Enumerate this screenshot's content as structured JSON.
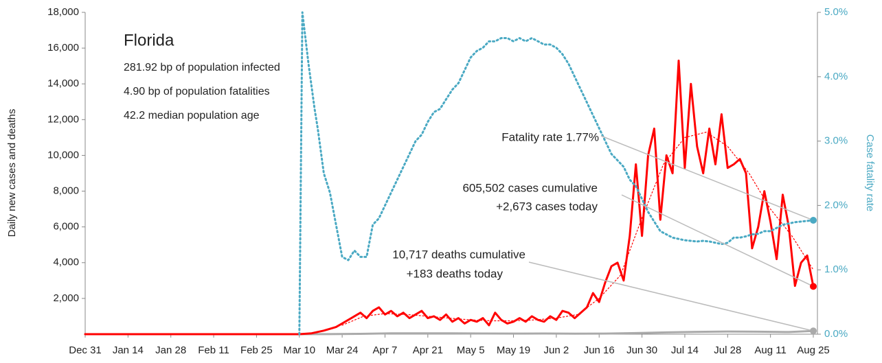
{
  "chart_data": {
    "type": "line",
    "title": "Florida",
    "info": [
      "281.92 bp of population infected",
      "4.90 bp of population fatalities",
      "42.2 median population age"
    ],
    "y_label": "Daily new cases and deaths",
    "y2_label": "Case fatality rate",
    "annotations": {
      "fatality": "Fatality rate 1.77%",
      "cases": [
        "605,502 cases cumulative",
        "+2,673 cases today"
      ],
      "deaths": [
        "10,717 deaths cumulative",
        "+183 deaths today"
      ]
    },
    "xlim": [
      0,
      238
    ],
    "xticks": [
      {
        "value": 0,
        "label": "Dec 31"
      },
      {
        "value": 14,
        "label": "Jan 14"
      },
      {
        "value": 28,
        "label": "Jan 28"
      },
      {
        "value": 42,
        "label": "Feb 11"
      },
      {
        "value": 56,
        "label": "Feb 25"
      },
      {
        "value": 70,
        "label": "Mar 10"
      },
      {
        "value": 84,
        "label": "Mar 24"
      },
      {
        "value": 98,
        "label": "Apr 7"
      },
      {
        "value": 112,
        "label": "Apr 21"
      },
      {
        "value": 126,
        "label": "May 5"
      },
      {
        "value": 140,
        "label": "May 19"
      },
      {
        "value": 154,
        "label": "Jun 2"
      },
      {
        "value": 168,
        "label": "Jun 16"
      },
      {
        "value": 182,
        "label": "Jun 30"
      },
      {
        "value": 196,
        "label": "Jul 14"
      },
      {
        "value": 210,
        "label": "Jul 28"
      },
      {
        "value": 224,
        "label": "Aug 11"
      },
      {
        "value": 238,
        "label": "Aug 25"
      }
    ],
    "ylim": [
      0,
      18000
    ],
    "yticks": [
      {
        "value": 2000,
        "label": "2,000"
      },
      {
        "value": 4000,
        "label": "4,000"
      },
      {
        "value": 6000,
        "label": "6,000"
      },
      {
        "value": 8000,
        "label": "8,000"
      },
      {
        "value": 10000,
        "label": "10,000"
      },
      {
        "value": 12000,
        "label": "12,000"
      },
      {
        "value": 14000,
        "label": "14,000"
      },
      {
        "value": 16000,
        "label": "16,000"
      },
      {
        "value": 18000,
        "label": "18,000"
      }
    ],
    "y2lim": [
      0,
      5
    ],
    "y2ticks": [
      {
        "value": 0,
        "label": "0.0%"
      },
      {
        "value": 1,
        "label": "1.0%"
      },
      {
        "value": 2,
        "label": "2.0%"
      },
      {
        "value": 3,
        "label": "3.0%"
      },
      {
        "value": 4,
        "label": "4.0%"
      },
      {
        "value": 5,
        "label": "5.0%"
      }
    ],
    "series": [
      {
        "color": "#aaaaaa",
        "style": "solid",
        "width": 3,
        "end_marker": true,
        "x": [
          0,
          70,
          80,
          90,
          100,
          110,
          120,
          130,
          140,
          150,
          160,
          170,
          180,
          190,
          200,
          210,
          220,
          230,
          238
        ],
        "values": [
          0,
          0,
          5,
          20,
          45,
          50,
          45,
          40,
          35,
          40,
          30,
          35,
          60,
          100,
          130,
          150,
          140,
          120,
          183
        ]
      },
      {
        "color": "#ff0000",
        "style": "solid",
        "width": 3,
        "end_marker": true,
        "x": [
          0,
          70,
          74,
          78,
          82,
          84,
          86,
          88,
          90,
          92,
          94,
          96,
          98,
          100,
          102,
          104,
          106,
          108,
          110,
          112,
          114,
          116,
          118,
          120,
          122,
          124,
          126,
          128,
          130,
          132,
          134,
          136,
          138,
          140,
          142,
          144,
          146,
          148,
          150,
          152,
          154,
          156,
          158,
          160,
          162,
          164,
          166,
          168,
          170,
          172,
          174,
          176,
          178,
          180,
          182,
          184,
          186,
          188,
          190,
          192,
          194,
          196,
          198,
          200,
          202,
          204,
          206,
          208,
          210,
          212,
          214,
          216,
          218,
          220,
          222,
          224,
          226,
          228,
          230,
          232,
          234,
          236,
          238
        ],
        "values": [
          0,
          0,
          50,
          200,
          400,
          600,
          800,
          1000,
          1200,
          900,
          1300,
          1500,
          1100,
          1300,
          1000,
          1200,
          900,
          1100,
          1300,
          900,
          1000,
          800,
          1100,
          700,
          900,
          600,
          800,
          700,
          900,
          500,
          1200,
          800,
          600,
          700,
          900,
          700,
          1000,
          800,
          700,
          1000,
          800,
          1300,
          1200,
          900,
          1200,
          1500,
          2300,
          1800,
          2900,
          3800,
          4000,
          3000,
          5500,
          9500,
          5500,
          10000,
          11500,
          6400,
          10000,
          9000,
          15300,
          9300,
          14000,
          10500,
          9000,
          11500,
          9500,
          12300,
          9300,
          9500,
          9800,
          9000,
          4800,
          6000,
          8000,
          6300,
          4200,
          7800,
          6000,
          2700,
          4000,
          4400,
          2673
        ]
      },
      {
        "color": "#ff0000",
        "style": "dotted",
        "width": 1.2,
        "end_marker": false,
        "x": [
          84,
          91,
          98,
          105,
          112,
          119,
          126,
          133,
          140,
          147,
          154,
          161,
          168,
          175,
          182,
          189,
          196,
          203,
          210,
          217,
          224,
          231,
          238
        ],
        "values": [
          500,
          1000,
          1150,
          1100,
          1000,
          900,
          800,
          750,
          750,
          800,
          900,
          1100,
          2000,
          3300,
          6500,
          9500,
          11000,
          11300,
          10500,
          9000,
          7000,
          5500,
          3600
        ]
      },
      {
        "color": "#4aa9c3",
        "style": "dotted",
        "width": 3,
        "end_marker": true,
        "axis": "y2",
        "x": [
          70,
          71,
          73,
          75,
          76,
          78,
          80,
          82,
          84,
          86,
          88,
          90,
          92,
          94,
          96,
          98,
          100,
          102,
          104,
          106,
          108,
          110,
          112,
          114,
          116,
          118,
          120,
          122,
          124,
          126,
          128,
          130,
          132,
          134,
          136,
          138,
          140,
          142,
          144,
          146,
          148,
          150,
          152,
          154,
          156,
          158,
          160,
          162,
          164,
          166,
          168,
          170,
          172,
          174,
          176,
          178,
          180,
          182,
          184,
          186,
          188,
          190,
          192,
          194,
          196,
          198,
          200,
          202,
          204,
          206,
          208,
          210,
          212,
          214,
          216,
          218,
          220,
          222,
          224,
          226,
          228,
          230,
          232,
          234,
          236,
          238
        ],
        "values": [
          0,
          5.0,
          4.2,
          3.5,
          3.2,
          2.5,
          2.2,
          1.7,
          1.2,
          1.15,
          1.3,
          1.2,
          1.2,
          1.7,
          1.8,
          2.0,
          2.2,
          2.4,
          2.6,
          2.8,
          3.0,
          3.1,
          3.3,
          3.45,
          3.5,
          3.65,
          3.8,
          3.9,
          4.1,
          4.3,
          4.4,
          4.45,
          4.55,
          4.55,
          4.6,
          4.6,
          4.55,
          4.6,
          4.55,
          4.6,
          4.55,
          4.5,
          4.5,
          4.45,
          4.35,
          4.2,
          4.0,
          3.8,
          3.6,
          3.4,
          3.2,
          3.0,
          2.8,
          2.7,
          2.6,
          2.4,
          2.3,
          2.1,
          1.9,
          1.75,
          1.6,
          1.55,
          1.5,
          1.48,
          1.46,
          1.45,
          1.44,
          1.45,
          1.44,
          1.42,
          1.4,
          1.42,
          1.5,
          1.5,
          1.52,
          1.55,
          1.56,
          1.6,
          1.6,
          1.65,
          1.7,
          1.72,
          1.74,
          1.75,
          1.76,
          1.77
        ]
      }
    ]
  }
}
